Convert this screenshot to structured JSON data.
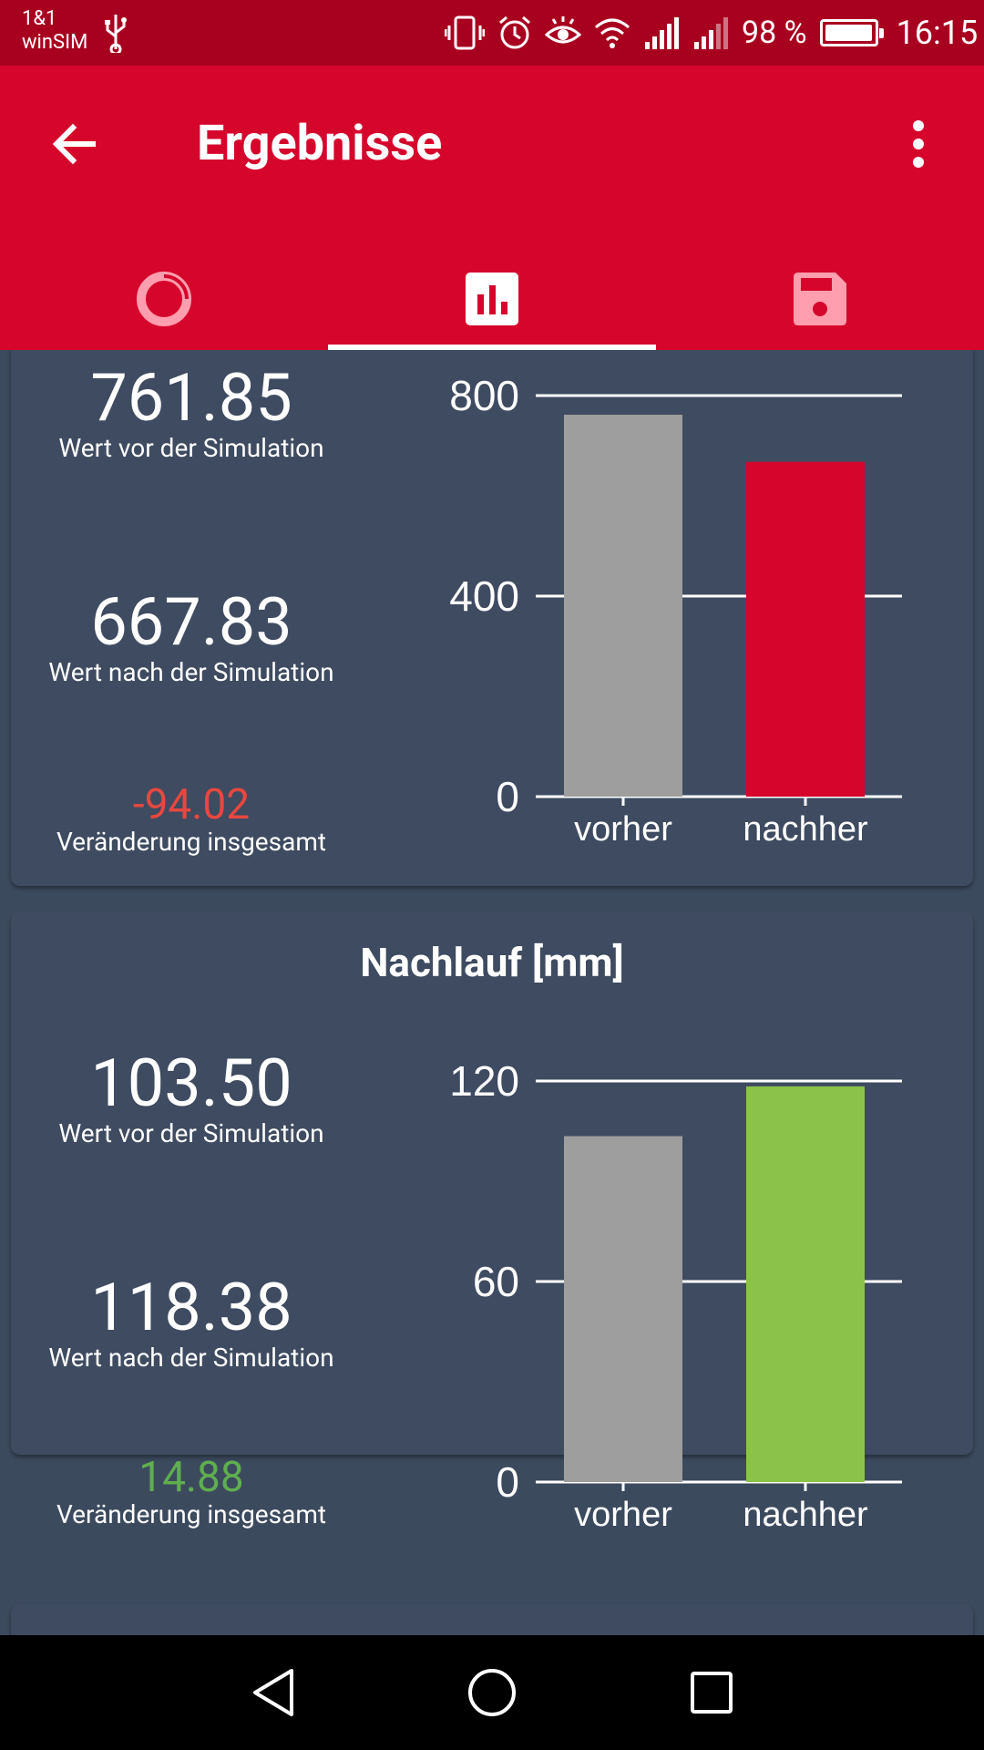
{
  "status_bar": {
    "carrier_line1": "1&1",
    "carrier_line2": "winSIM",
    "battery_percent": "98 %",
    "battery_level": 0.98,
    "time": "16:15",
    "icons": [
      "usb-icon",
      "vibrate-icon",
      "alarm-icon",
      "eye-comfort-icon",
      "wifi-icon",
      "signal-icon",
      "signal-weak-icon",
      "battery-charging-icon"
    ]
  },
  "app_bar": {
    "title": "Ergebnisse",
    "back_icon": "arrow-back-icon",
    "menu_icon": "more-vertical-icon",
    "color": "#d6052c"
  },
  "tabs": [
    {
      "icon": "donut-chart-icon",
      "selected": false
    },
    {
      "icon": "bar-chart-icon",
      "selected": true
    },
    {
      "icon": "save-icon",
      "selected": false
    }
  ],
  "cards": [
    {
      "title": "",
      "before_value": "761.85",
      "before_label": "Wert vor der Simulation",
      "after_value": "667.83",
      "after_label": "Wert nach der Simulation",
      "change_value": "-94.02",
      "change_label": "Veränderung insgesamt",
      "change_color": "#e8473f"
    },
    {
      "title": "Nachlauf [mm]",
      "before_value": "103.50",
      "before_label": "Wert vor der Simulation",
      "after_value": "118.38",
      "after_label": "Wert nach der Simulation",
      "change_value": "14.88",
      "change_label": "Veränderung insgesamt",
      "change_color": "#5fae4f"
    }
  ],
  "chart_data": [
    {
      "type": "bar",
      "categories": [
        "vorher",
        "nachher"
      ],
      "values": [
        761.85,
        667.83
      ],
      "colors": [
        "#9e9e9e",
        "#d6052c"
      ],
      "yticks": [
        0,
        400,
        800
      ],
      "ylim": [
        0,
        800
      ],
      "grid": true
    },
    {
      "type": "bar",
      "title": "Nachlauf [mm]",
      "categories": [
        "vorher",
        "nachher"
      ],
      "values": [
        103.5,
        118.38
      ],
      "colors": [
        "#9e9e9e",
        "#8bc34a"
      ],
      "yticks": [
        0,
        60,
        120
      ],
      "ylim": [
        0,
        120
      ],
      "grid": true
    }
  ],
  "nav_bar": {
    "icons": [
      "nav-back-icon",
      "nav-home-icon",
      "nav-recents-icon"
    ]
  }
}
